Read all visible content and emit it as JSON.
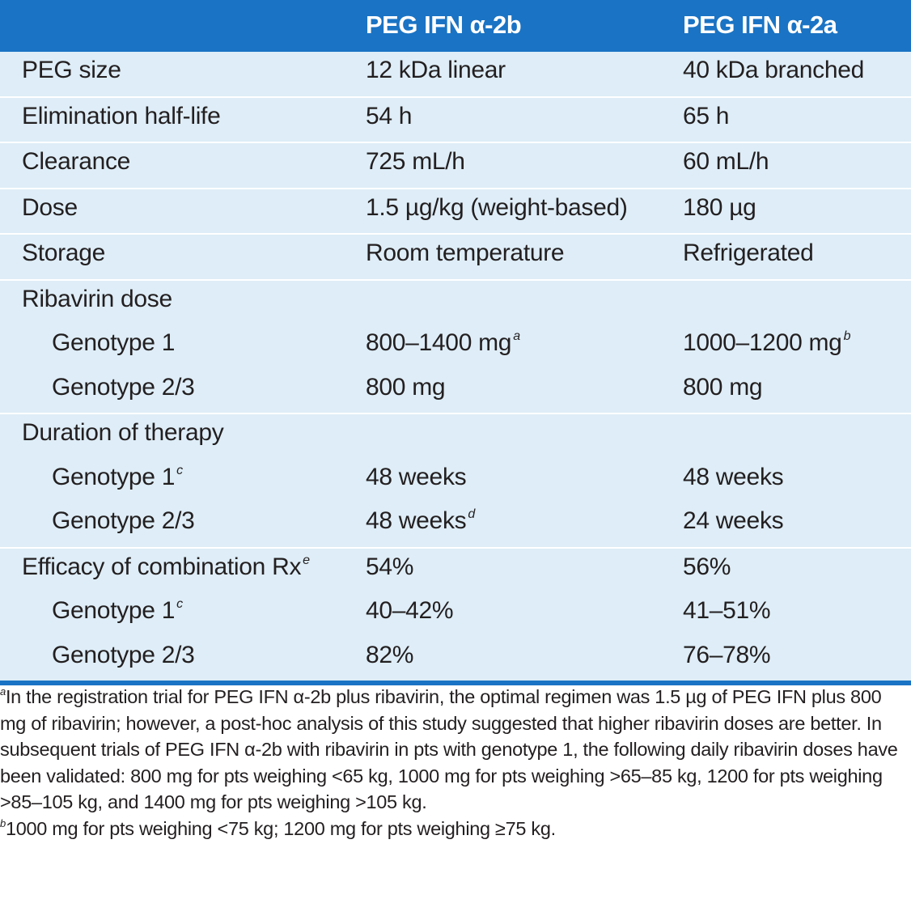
{
  "header": {
    "col1": "",
    "col2": "PEG IFN α-2b",
    "col3": "PEG IFN α-2a"
  },
  "groups": [
    {
      "rows": [
        {
          "label": "PEG size",
          "a": "12 kDa linear",
          "b": "40 kDa branched"
        }
      ]
    },
    {
      "rows": [
        {
          "label": "Elimination half-life",
          "a": "54 h",
          "b": "65 h"
        }
      ]
    },
    {
      "rows": [
        {
          "label": "Clearance",
          "a": "725 mL/h",
          "b": "60 mL/h"
        }
      ]
    },
    {
      "rows": [
        {
          "label": "Dose",
          "a": "1.5 µg/kg (weight-based)",
          "b": "180 µg"
        }
      ]
    },
    {
      "rows": [
        {
          "label": "Storage",
          "a": "Room temperature",
          "b": "Refrigerated"
        }
      ]
    },
    {
      "rows": [
        {
          "label": "Ribavirin dose",
          "a": "",
          "b": ""
        },
        {
          "label": "Genotype 1",
          "a": "800–1400 mg",
          "a_sup": "a",
          "b": "1000–1200 mg",
          "b_sup": "b"
        },
        {
          "label": "Genotype 2/3",
          "a": "800 mg",
          "b": "800 mg"
        }
      ]
    },
    {
      "rows": [
        {
          "label": "Duration of therapy",
          "a": "",
          "b": ""
        },
        {
          "label": "Genotype 1",
          "label_sup": "c",
          "a": "48 weeks",
          "b": "48 weeks"
        },
        {
          "label": "Genotype 2/3",
          "a": "48 weeks",
          "a_sup": "d",
          "b": "24 weeks"
        }
      ]
    },
    {
      "rows": [
        {
          "label": "Efficacy of combination Rx",
          "label_sup": "e",
          "a": "54%",
          "b": "56%"
        },
        {
          "label": "Genotype 1",
          "label_sup": "c",
          "a": "40–42%",
          "b": "41–51%"
        },
        {
          "label": "Genotype 2/3",
          "a": "82%",
          "b": "76–78%"
        }
      ]
    }
  ],
  "footnotes": {
    "a_mark": "a",
    "a_text": "In the registration trial for PEG IFN α-2b plus ribavirin, the optimal regimen was 1.5 µg of PEG IFN plus 800 mg of ribavirin; however, a post-hoc analysis of this study suggested that higher ribavirin doses are better. In subsequent trials of PEG IFN α-2b with ribavirin in pts with genotype 1, the following daily ribavirin doses have been validated: 800 mg for pts weighing <65 kg, 1000 mg for pts weighing >65–85 kg, 1200 for pts weighing >85–105 kg, and 1400 mg for pts weighing >105 kg.",
    "b_mark": "b",
    "b_text": "1000 mg for pts weighing <75 kg; 1200 mg for pts weighing ≥75 kg."
  },
  "colors": {
    "header_bg": "#1a73c4",
    "body_bg": "#deedf7",
    "text": "#231f20"
  }
}
